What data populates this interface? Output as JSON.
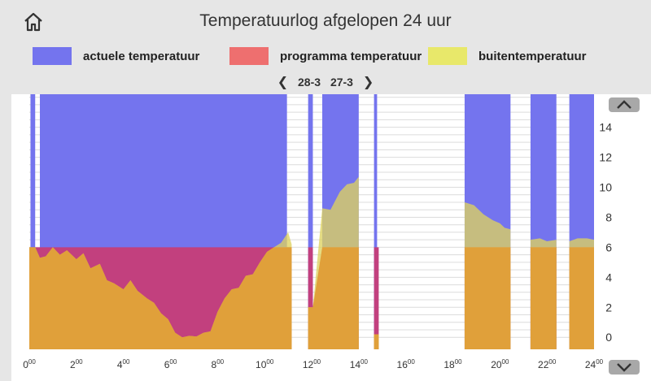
{
  "header": {
    "title": "Temperatuurlog afgelopen 24 uur",
    "home_icon": "home-icon"
  },
  "legend": [
    {
      "label": "actuele temperatuur",
      "color": "#7474ee"
    },
    {
      "label": "programma temperatuur",
      "color": "#ee6f6f"
    },
    {
      "label": "buitentemperatuur",
      "color": "#e8e86a"
    }
  ],
  "date_nav": {
    "prev_icon": "chevron-left-icon",
    "next_icon": "chevron-right-icon",
    "date_a": "28-3",
    "date_b": "27-3"
  },
  "chart_data": {
    "type": "area",
    "xlim": [
      0,
      24
    ],
    "ylim": [
      -0.8,
      16.2
    ],
    "x_ticks": [
      0,
      2,
      4,
      6,
      8,
      10,
      12,
      14,
      16,
      18,
      20,
      22,
      24
    ],
    "x_tick_labels": [
      "0",
      "2",
      "4",
      "6",
      "8",
      "10",
      "12",
      "14",
      "16",
      "18",
      "20",
      "22",
      "24"
    ],
    "x_tick_suffix": "00",
    "y_ticks": [
      0,
      2,
      4,
      6,
      8,
      10,
      12,
      14
    ],
    "y_tick_labels": [
      "0",
      "2",
      "4",
      "6",
      "8",
      "10",
      "12",
      "14"
    ],
    "series": [
      {
        "name": "actuele temperatuur",
        "color": "#7474ee",
        "segments": [
          [
            0.05,
            0.25,
            16.2
          ],
          [
            0.45,
            10.95,
            16.2
          ],
          [
            11.85,
            12.05,
            16.2
          ],
          [
            12.45,
            14.0,
            16.2
          ],
          [
            14.65,
            14.78,
            16.2
          ],
          [
            18.5,
            20.45,
            16.2
          ],
          [
            21.3,
            22.4,
            16.2
          ],
          [
            22.95,
            24.3,
            16.2
          ]
        ]
      },
      {
        "name": "programma temperatuur",
        "color": "#c2407e",
        "segments": [
          [
            0.0,
            11.15,
            6.0
          ],
          [
            11.85,
            12.05,
            6.0
          ],
          [
            12.45,
            14.0,
            6.0
          ],
          [
            14.65,
            14.85,
            6.0
          ],
          [
            18.5,
            20.45,
            6.0
          ],
          [
            21.3,
            22.4,
            6.0
          ],
          [
            22.95,
            24.3,
            6.0
          ]
        ]
      },
      {
        "name": "buitentemperatuur",
        "color": "#d9a13e",
        "points": [
          [
            0.0,
            6.0
          ],
          [
            0.25,
            6.0
          ],
          [
            0.45,
            5.3
          ],
          [
            0.7,
            5.4
          ],
          [
            1.0,
            6.0
          ],
          [
            1.3,
            5.5
          ],
          [
            1.6,
            5.8
          ],
          [
            2.0,
            5.2
          ],
          [
            2.3,
            5.6
          ],
          [
            2.6,
            4.6
          ],
          [
            3.0,
            4.9
          ],
          [
            3.3,
            3.8
          ],
          [
            3.6,
            3.6
          ],
          [
            4.0,
            3.2
          ],
          [
            4.3,
            3.8
          ],
          [
            4.6,
            3.1
          ],
          [
            5.0,
            2.6
          ],
          [
            5.3,
            2.3
          ],
          [
            5.6,
            1.6
          ],
          [
            5.9,
            1.2
          ],
          [
            6.2,
            0.3
          ],
          [
            6.5,
            0.0
          ],
          [
            6.8,
            0.1
          ],
          [
            7.1,
            0.05
          ],
          [
            7.4,
            0.3
          ],
          [
            7.7,
            0.4
          ],
          [
            8.0,
            1.7
          ],
          [
            8.3,
            2.6
          ],
          [
            8.6,
            3.2
          ],
          [
            8.9,
            3.3
          ],
          [
            9.2,
            4.1
          ],
          [
            9.5,
            4.2
          ],
          [
            9.8,
            5.0
          ],
          [
            10.1,
            5.7
          ],
          [
            10.4,
            6.0
          ],
          [
            10.7,
            6.3
          ],
          [
            11.0,
            7.0
          ],
          [
            11.15,
            6.2
          ],
          [
            11.85,
            2.0
          ],
          [
            12.05,
            2.0
          ],
          [
            12.45,
            8.6
          ],
          [
            12.8,
            8.5
          ],
          [
            13.2,
            9.7
          ],
          [
            13.5,
            10.2
          ],
          [
            13.8,
            10.3
          ],
          [
            14.0,
            10.7
          ],
          [
            14.65,
            0.2
          ],
          [
            14.85,
            0.2
          ],
          [
            18.5,
            9.0
          ],
          [
            18.9,
            8.8
          ],
          [
            19.3,
            8.2
          ],
          [
            19.7,
            7.8
          ],
          [
            20.0,
            7.6
          ],
          [
            20.2,
            7.3
          ],
          [
            20.45,
            7.2
          ],
          [
            21.3,
            6.5
          ],
          [
            21.7,
            6.6
          ],
          [
            22.0,
            6.4
          ],
          [
            22.4,
            6.5
          ],
          [
            22.95,
            6.4
          ],
          [
            23.3,
            6.6
          ],
          [
            23.7,
            6.6
          ],
          [
            24.0,
            6.5
          ],
          [
            24.3,
            6.2
          ]
        ]
      }
    ]
  }
}
